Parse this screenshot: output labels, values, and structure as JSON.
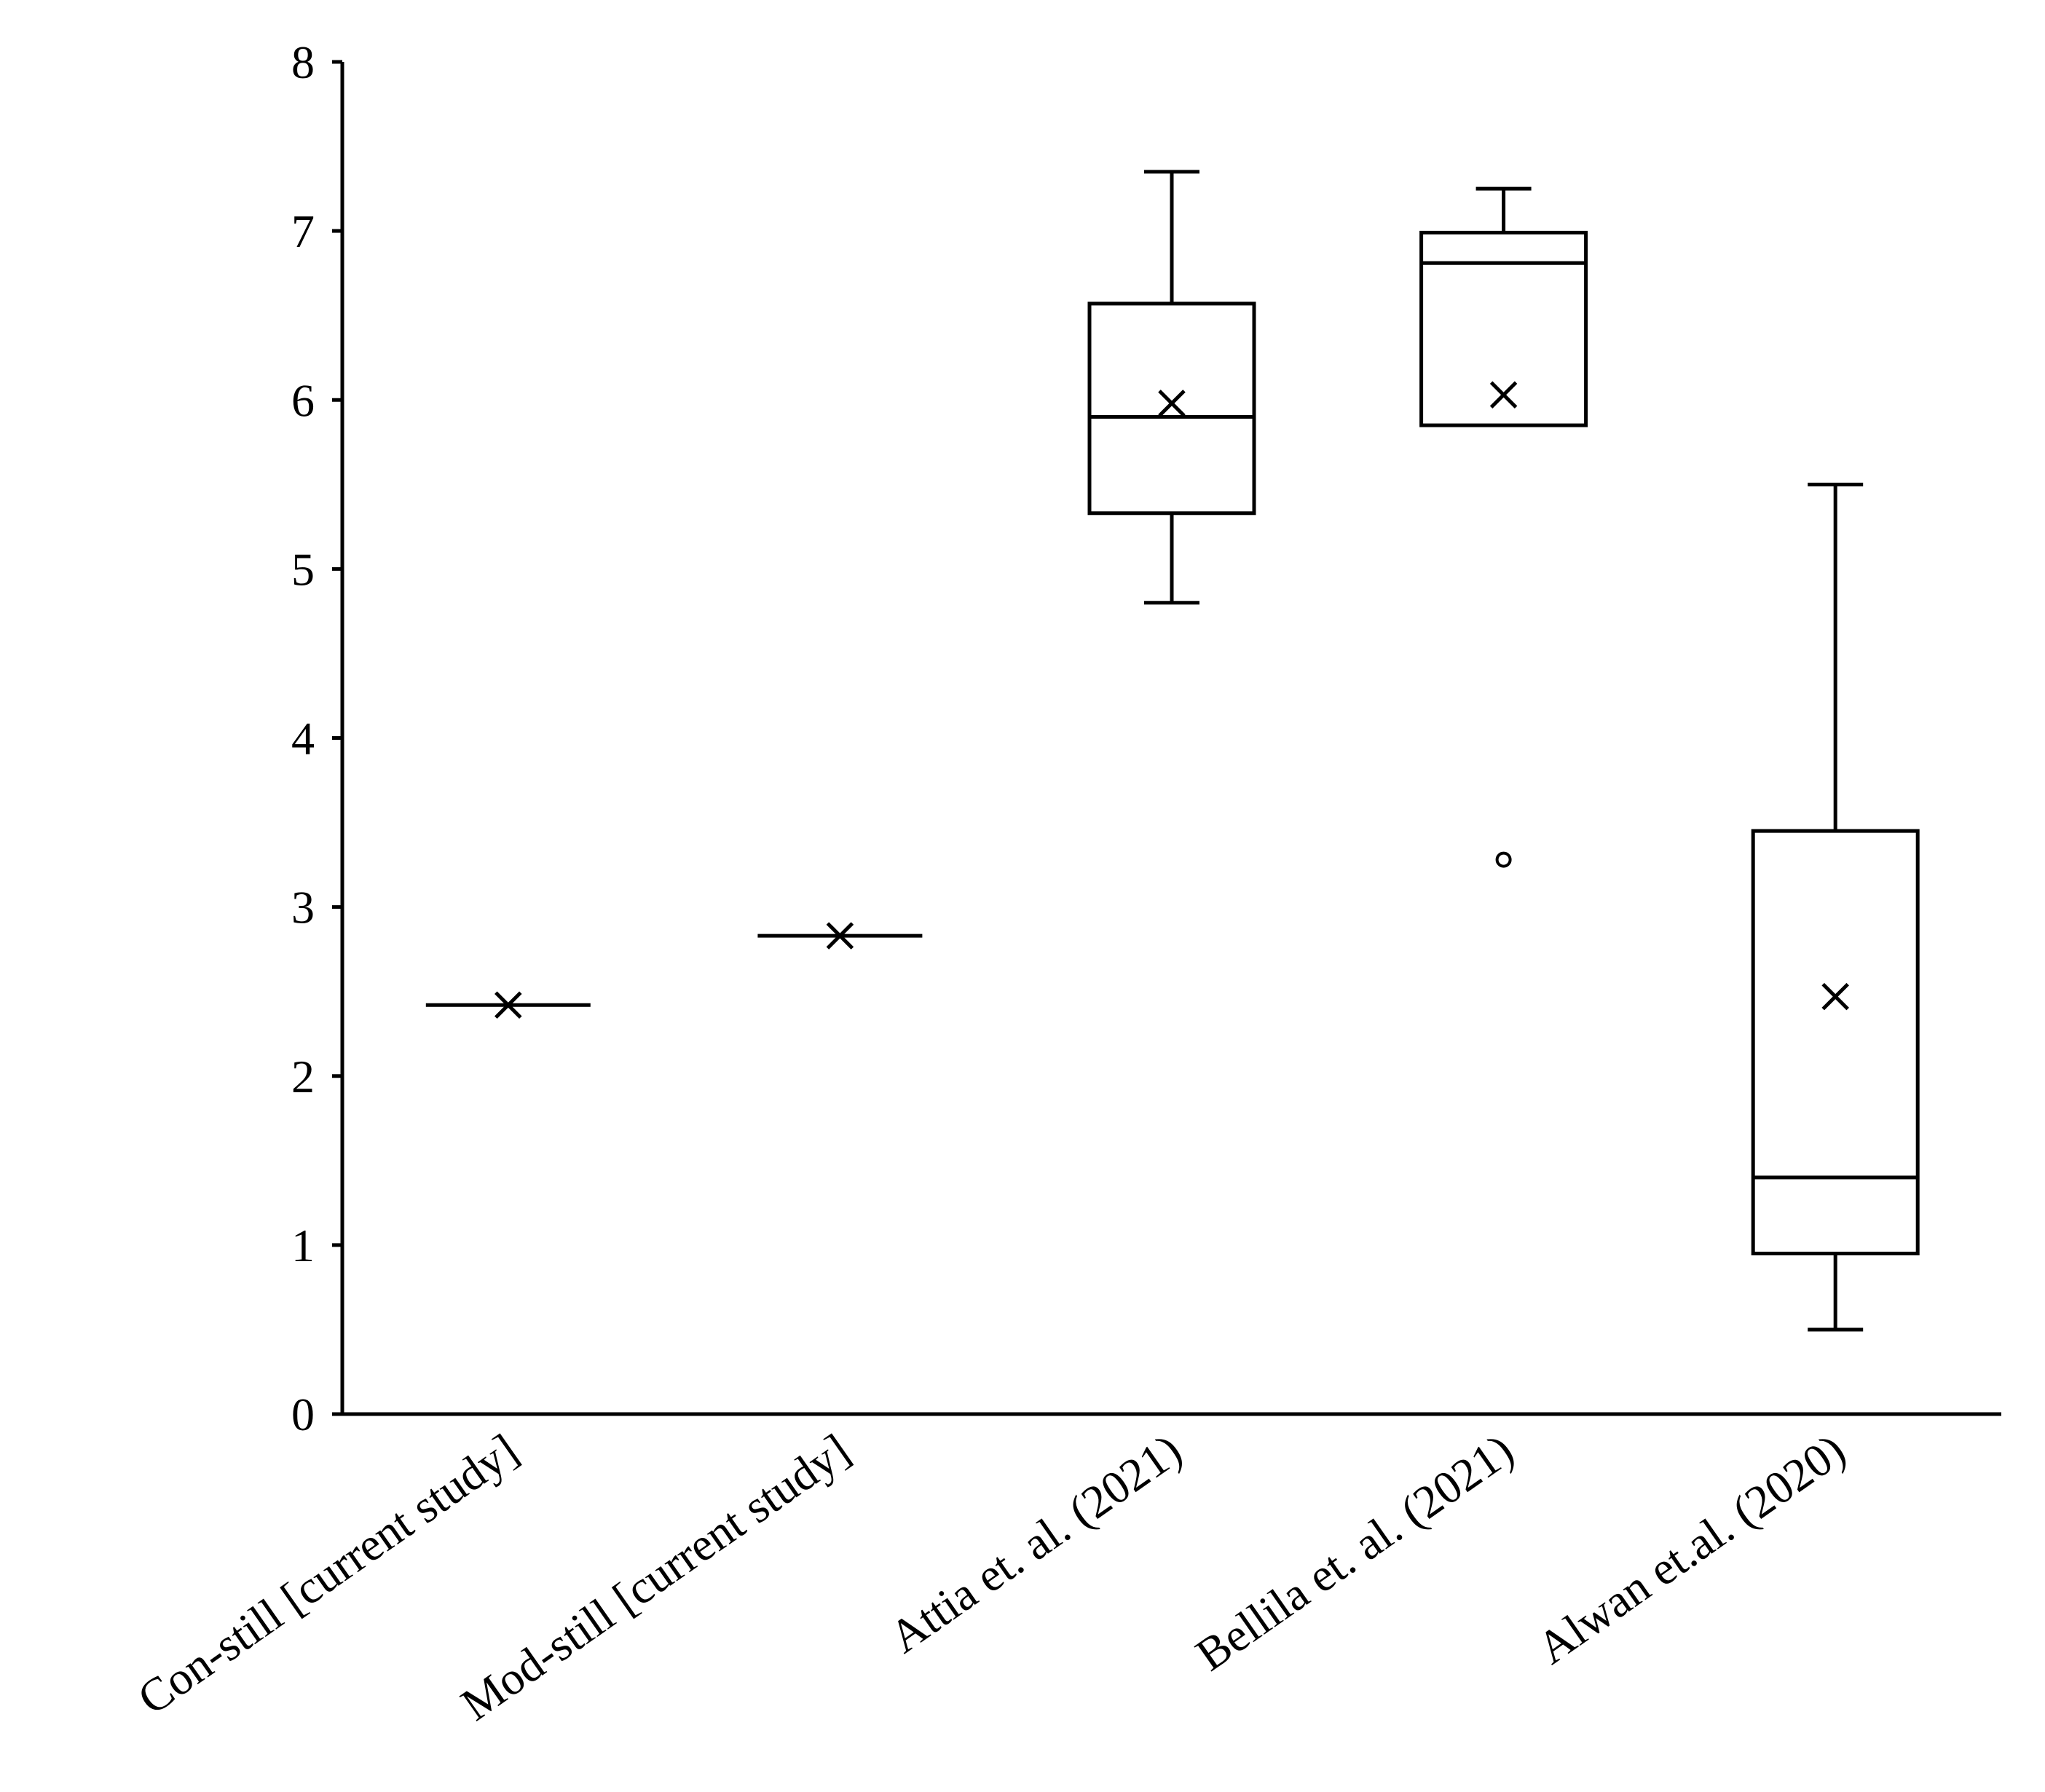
{
  "chart_data": {
    "type": "box",
    "title": "",
    "xlabel": "",
    "ylabel": "",
    "ylim": [
      0,
      8
    ],
    "yticks": [
      "0",
      "1",
      "2",
      "3",
      "4",
      "5",
      "6",
      "7",
      "8"
    ],
    "grid": false,
    "legend": "none",
    "categories": [
      "Con-still [current study]",
      "Mod-still [current study]",
      "Attia et. al. (2021)",
      "Bellila et. al. (2021)",
      "Alwan et.al. (2020)"
    ],
    "boxes": [
      {
        "min": 2.42,
        "q1": 2.42,
        "median": 2.42,
        "q3": 2.42,
        "max": 2.42,
        "mean": 2.42,
        "outliers": []
      },
      {
        "min": 2.83,
        "q1": 2.83,
        "median": 2.83,
        "q3": 2.83,
        "max": 2.83,
        "mean": 2.83,
        "outliers": []
      },
      {
        "min": 4.8,
        "q1": 5.33,
        "median": 5.9,
        "q3": 6.57,
        "max": 7.35,
        "mean": 5.98,
        "outliers": []
      },
      {
        "min": 5.85,
        "q1": 5.85,
        "median": 6.81,
        "q3": 6.99,
        "max": 7.25,
        "mean": 6.03,
        "outliers": [
          3.28
        ]
      },
      {
        "min": 0.5,
        "q1": 0.95,
        "median": 1.4,
        "q3": 3.45,
        "max": 5.5,
        "mean": 2.47,
        "outliers": []
      }
    ],
    "colors": {
      "stroke": "#000000",
      "fill": "#ffffff"
    }
  }
}
